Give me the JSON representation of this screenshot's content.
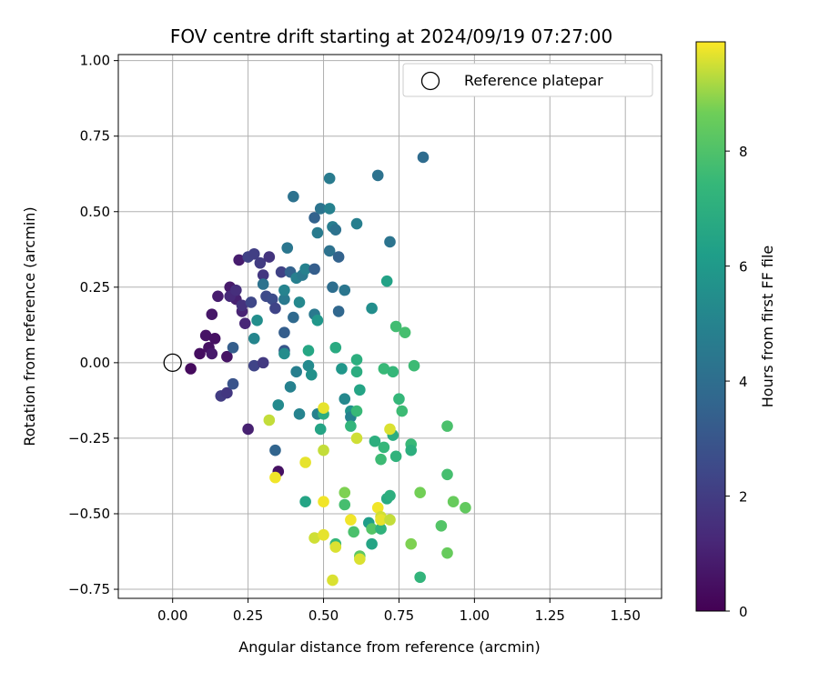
{
  "chart_data": {
    "type": "scatter",
    "title": "FOV centre drift starting at 2024/09/19 07:27:00",
    "xlabel": "Angular distance from reference (arcmin)",
    "ylabel": "Rotation from reference (arcmin)",
    "xlim": [
      -0.18,
      1.62
    ],
    "ylim": [
      -0.78,
      1.02
    ],
    "xticks": [
      "0.00",
      "0.25",
      "0.50",
      "0.75",
      "1.00",
      "1.25",
      "1.50"
    ],
    "xtick_values": [
      0,
      0.25,
      0.5,
      0.75,
      1.0,
      1.25,
      1.5
    ],
    "yticks": [
      "−0.75",
      "−0.50",
      "−0.25",
      "0.00",
      "0.25",
      "0.50",
      "0.75",
      "1.00"
    ],
    "ytick_values": [
      -0.75,
      -0.5,
      -0.25,
      0,
      0.25,
      0.5,
      0.75,
      1.0
    ],
    "grid": true,
    "legend": {
      "position": "top-right",
      "entries": [
        {
          "label": "Reference platepar",
          "marker": "hollow-circle"
        }
      ]
    },
    "reference_point": {
      "x": 0.0,
      "y": 0.0
    },
    "colorbar": {
      "label": "Hours from first FF file",
      "colormap": "viridis",
      "range": [
        0,
        9.9
      ],
      "ticks": [
        "0",
        "2",
        "4",
        "6",
        "8"
      ],
      "tick_values": [
        0,
        2,
        4,
        6,
        8
      ]
    },
    "series": [
      {
        "points": [
          {
            "x": 0.06,
            "y": -0.02,
            "c": 0.3
          },
          {
            "x": 0.09,
            "y": 0.03,
            "c": 0.4
          },
          {
            "x": 0.11,
            "y": 0.09,
            "c": 0.6
          },
          {
            "x": 0.12,
            "y": 0.05,
            "c": 0.5
          },
          {
            "x": 0.13,
            "y": 0.03,
            "c": 0.8
          },
          {
            "x": 0.14,
            "y": 0.08,
            "c": 0.5
          },
          {
            "x": 0.13,
            "y": 0.16,
            "c": 0.7
          },
          {
            "x": 0.15,
            "y": 0.22,
            "c": 0.9
          },
          {
            "x": 0.18,
            "y": 0.02,
            "c": 0.6
          },
          {
            "x": 0.19,
            "y": 0.25,
            "c": 0.8
          },
          {
            "x": 0.21,
            "y": 0.21,
            "c": 1.0
          },
          {
            "x": 0.22,
            "y": 0.34,
            "c": 0.9
          },
          {
            "x": 0.23,
            "y": 0.17,
            "c": 1.1
          },
          {
            "x": 0.16,
            "y": -0.11,
            "c": 2.0
          },
          {
            "x": 0.18,
            "y": -0.1,
            "c": 1.8
          },
          {
            "x": 0.2,
            "y": 0.05,
            "c": 3.3
          },
          {
            "x": 0.2,
            "y": -0.07,
            "c": 2.9
          },
          {
            "x": 0.19,
            "y": 0.22,
            "c": 1.3
          },
          {
            "x": 0.21,
            "y": 0.24,
            "c": 1.5
          },
          {
            "x": 0.23,
            "y": 0.19,
            "c": 1.6
          },
          {
            "x": 0.24,
            "y": 0.13,
            "c": 1.2
          },
          {
            "x": 0.25,
            "y": 0.35,
            "c": 2.2
          },
          {
            "x": 0.26,
            "y": 0.2,
            "c": 2.4
          },
          {
            "x": 0.27,
            "y": 0.36,
            "c": 2.1
          },
          {
            "x": 0.29,
            "y": 0.33,
            "c": 2.0
          },
          {
            "x": 0.3,
            "y": 0.29,
            "c": 1.8
          },
          {
            "x": 0.31,
            "y": 0.22,
            "c": 2.5
          },
          {
            "x": 0.32,
            "y": 0.35,
            "c": 1.7
          },
          {
            "x": 0.33,
            "y": 0.21,
            "c": 2.6
          },
          {
            "x": 0.34,
            "y": 0.18,
            "c": 2.3
          },
          {
            "x": 0.36,
            "y": 0.3,
            "c": 2.2
          },
          {
            "x": 0.27,
            "y": -0.01,
            "c": 2.3
          },
          {
            "x": 0.3,
            "y": 0.0,
            "c": 1.9
          },
          {
            "x": 0.25,
            "y": -0.22,
            "c": 1.0
          },
          {
            "x": 0.35,
            "y": -0.36,
            "c": 0.5
          },
          {
            "x": 0.34,
            "y": -0.29,
            "c": 3.6
          },
          {
            "x": 0.27,
            "y": 0.08,
            "c": 5.1
          },
          {
            "x": 0.28,
            "y": 0.14,
            "c": 5.5
          },
          {
            "x": 0.3,
            "y": 0.26,
            "c": 4.2
          },
          {
            "x": 0.37,
            "y": 0.04,
            "c": 3.0
          },
          {
            "x": 0.37,
            "y": 0.1,
            "c": 3.3
          },
          {
            "x": 0.37,
            "y": 0.21,
            "c": 4.5
          },
          {
            "x": 0.38,
            "y": 0.38,
            "c": 4.4
          },
          {
            "x": 0.37,
            "y": 0.03,
            "c": 5.4
          },
          {
            "x": 0.37,
            "y": 0.24,
            "c": 5.0
          },
          {
            "x": 0.39,
            "y": 0.3,
            "c": 3.5
          },
          {
            "x": 0.4,
            "y": 0.15,
            "c": 3.8
          },
          {
            "x": 0.4,
            "y": 0.55,
            "c": 4.2
          },
          {
            "x": 0.41,
            "y": 0.28,
            "c": 4.8
          },
          {
            "x": 0.42,
            "y": 0.2,
            "c": 5.2
          },
          {
            "x": 0.43,
            "y": 0.29,
            "c": 4.5
          },
          {
            "x": 0.44,
            "y": 0.31,
            "c": 4.9
          },
          {
            "x": 0.47,
            "y": 0.48,
            "c": 3.5
          },
          {
            "x": 0.47,
            "y": 0.31,
            "c": 3.3
          },
          {
            "x": 0.48,
            "y": 0.43,
            "c": 4.6
          },
          {
            "x": 0.49,
            "y": 0.51,
            "c": 4.3
          },
          {
            "x": 0.52,
            "y": 0.51,
            "c": 4.9
          },
          {
            "x": 0.52,
            "y": 0.61,
            "c": 4.6
          },
          {
            "x": 0.52,
            "y": 0.37,
            "c": 4.2
          },
          {
            "x": 0.53,
            "y": 0.45,
            "c": 4.7
          },
          {
            "x": 0.54,
            "y": 0.44,
            "c": 4.2
          },
          {
            "x": 0.55,
            "y": 0.35,
            "c": 3.5
          },
          {
            "x": 0.53,
            "y": 0.25,
            "c": 4.0
          },
          {
            "x": 0.55,
            "y": 0.17,
            "c": 3.7
          },
          {
            "x": 0.57,
            "y": 0.24,
            "c": 4.4
          },
          {
            "x": 0.61,
            "y": 0.46,
            "c": 4.8
          },
          {
            "x": 0.68,
            "y": 0.62,
            "c": 4.2
          },
          {
            "x": 0.72,
            "y": 0.4,
            "c": 4.3
          },
          {
            "x": 0.83,
            "y": 0.68,
            "c": 3.9
          },
          {
            "x": 0.66,
            "y": 0.18,
            "c": 5.5
          },
          {
            "x": 0.71,
            "y": 0.27,
            "c": 6.4
          },
          {
            "x": 0.47,
            "y": 0.16,
            "c": 4.5
          },
          {
            "x": 0.48,
            "y": 0.14,
            "c": 5.9
          },
          {
            "x": 0.41,
            "y": -0.03,
            "c": 4.8
          },
          {
            "x": 0.39,
            "y": -0.08,
            "c": 4.9
          },
          {
            "x": 0.35,
            "y": -0.14,
            "c": 5.3
          },
          {
            "x": 0.42,
            "y": -0.17,
            "c": 5.0
          },
          {
            "x": 0.45,
            "y": -0.01,
            "c": 5.3
          },
          {
            "x": 0.46,
            "y": -0.04,
            "c": 5.6
          },
          {
            "x": 0.48,
            "y": -0.17,
            "c": 4.9
          },
          {
            "x": 0.49,
            "y": -0.22,
            "c": 6.5
          },
          {
            "x": 0.57,
            "y": -0.12,
            "c": 5.2
          },
          {
            "x": 0.56,
            "y": -0.02,
            "c": 5.9
          },
          {
            "x": 0.59,
            "y": -0.16,
            "c": 5.7
          },
          {
            "x": 0.59,
            "y": -0.18,
            "c": 4.9
          },
          {
            "x": 0.62,
            "y": -0.09,
            "c": 6.5
          },
          {
            "x": 0.45,
            "y": 0.04,
            "c": 6.6
          },
          {
            "x": 0.54,
            "y": 0.05,
            "c": 6.8
          },
          {
            "x": 0.61,
            "y": 0.01,
            "c": 7.0
          },
          {
            "x": 0.61,
            "y": -0.03,
            "c": 6.9
          },
          {
            "x": 0.44,
            "y": -0.46,
            "c": 6.5
          },
          {
            "x": 0.5,
            "y": -0.17,
            "c": 6.9
          },
          {
            "x": 0.59,
            "y": -0.21,
            "c": 7.3
          },
          {
            "x": 0.61,
            "y": -0.16,
            "c": 7.5
          },
          {
            "x": 0.65,
            "y": -0.53,
            "c": 6.2
          },
          {
            "x": 0.66,
            "y": -0.6,
            "c": 6.5
          },
          {
            "x": 0.67,
            "y": -0.26,
            "c": 7.0
          },
          {
            "x": 0.69,
            "y": -0.32,
            "c": 7.6
          },
          {
            "x": 0.7,
            "y": -0.28,
            "c": 7.4
          },
          {
            "x": 0.7,
            "y": -0.02,
            "c": 7.5
          },
          {
            "x": 0.71,
            "y": -0.45,
            "c": 6.8
          },
          {
            "x": 0.72,
            "y": -0.44,
            "c": 7.0
          },
          {
            "x": 0.73,
            "y": -0.03,
            "c": 7.4
          },
          {
            "x": 0.73,
            "y": -0.24,
            "c": 6.9
          },
          {
            "x": 0.74,
            "y": -0.31,
            "c": 7.2
          },
          {
            "x": 0.74,
            "y": 0.12,
            "c": 7.7
          },
          {
            "x": 0.75,
            "y": -0.12,
            "c": 7.4
          },
          {
            "x": 0.77,
            "y": 0.1,
            "c": 7.8
          },
          {
            "x": 0.76,
            "y": -0.16,
            "c": 7.6
          },
          {
            "x": 0.79,
            "y": -0.27,
            "c": 7.5
          },
          {
            "x": 0.79,
            "y": -0.29,
            "c": 7.0
          },
          {
            "x": 0.8,
            "y": -0.01,
            "c": 7.6
          },
          {
            "x": 0.82,
            "y": -0.43,
            "c": 8.7
          },
          {
            "x": 0.82,
            "y": -0.71,
            "c": 7.3
          },
          {
            "x": 0.89,
            "y": -0.54,
            "c": 8.1
          },
          {
            "x": 0.91,
            "y": -0.21,
            "c": 7.9
          },
          {
            "x": 0.91,
            "y": -0.37,
            "c": 7.8
          },
          {
            "x": 0.91,
            "y": -0.63,
            "c": 8.5
          },
          {
            "x": 0.93,
            "y": -0.46,
            "c": 8.5
          },
          {
            "x": 0.97,
            "y": -0.48,
            "c": 8.4
          },
          {
            "x": 0.54,
            "y": -0.6,
            "c": 7.4
          },
          {
            "x": 0.57,
            "y": -0.47,
            "c": 7.8
          },
          {
            "x": 0.6,
            "y": -0.56,
            "c": 7.9
          },
          {
            "x": 0.62,
            "y": -0.64,
            "c": 8.3
          },
          {
            "x": 0.66,
            "y": -0.55,
            "c": 8.1
          },
          {
            "x": 0.69,
            "y": -0.55,
            "c": 7.2
          },
          {
            "x": 0.79,
            "y": -0.6,
            "c": 8.8
          },
          {
            "x": 0.57,
            "y": -0.43,
            "c": 8.8
          },
          {
            "x": 0.32,
            "y": -0.19,
            "c": 9.4
          },
          {
            "x": 0.34,
            "y": -0.38,
            "c": 9.8
          },
          {
            "x": 0.44,
            "y": -0.33,
            "c": 9.7
          },
          {
            "x": 0.47,
            "y": -0.58,
            "c": 9.5
          },
          {
            "x": 0.5,
            "y": -0.15,
            "c": 9.7
          },
          {
            "x": 0.5,
            "y": -0.29,
            "c": 9.4
          },
          {
            "x": 0.5,
            "y": -0.46,
            "c": 9.8
          },
          {
            "x": 0.5,
            "y": -0.57,
            "c": 9.7
          },
          {
            "x": 0.53,
            "y": -0.72,
            "c": 9.6
          },
          {
            "x": 0.54,
            "y": -0.61,
            "c": 9.6
          },
          {
            "x": 0.59,
            "y": -0.52,
            "c": 9.8
          },
          {
            "x": 0.61,
            "y": -0.25,
            "c": 9.5
          },
          {
            "x": 0.62,
            "y": -0.65,
            "c": 9.6
          },
          {
            "x": 0.68,
            "y": -0.48,
            "c": 9.8
          },
          {
            "x": 0.69,
            "y": -0.51,
            "c": 9.5
          },
          {
            "x": 0.69,
            "y": -0.52,
            "c": 9.7
          },
          {
            "x": 0.72,
            "y": -0.22,
            "c": 9.6
          },
          {
            "x": 0.72,
            "y": -0.52,
            "c": 9.4
          }
        ]
      }
    ]
  }
}
